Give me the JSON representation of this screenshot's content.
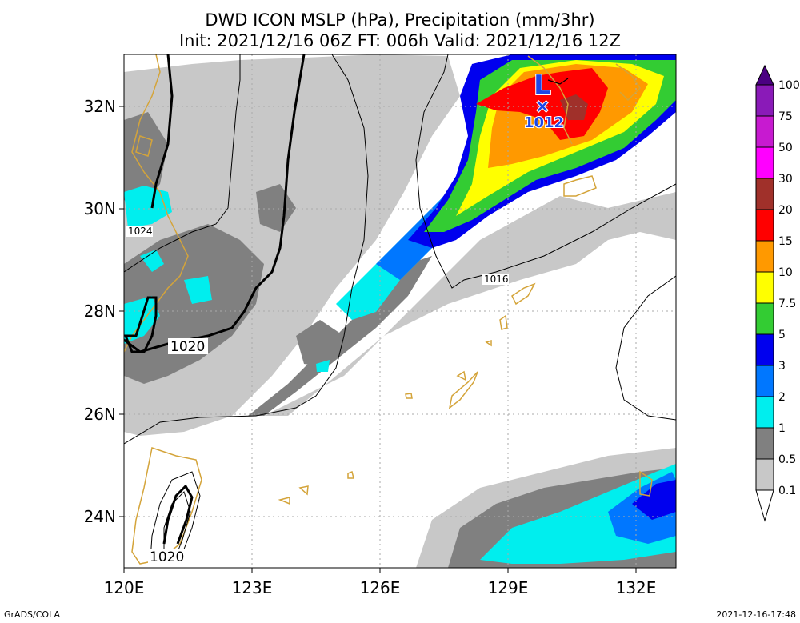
{
  "title": {
    "line1": "DWD ICON MSLP (hPa), Precipitation (mm/3hr)",
    "line2": "Init: 2021/12/16 06Z  FT: 006h  Valid: 2021/12/16 12Z"
  },
  "axes": {
    "lon_labels": [
      "120E",
      "123E",
      "126E",
      "129E",
      "132E"
    ],
    "lat_labels": [
      "32N",
      "30N",
      "28N",
      "26N",
      "24N"
    ]
  },
  "colorbar": {
    "labels": [
      "100",
      "75",
      "50",
      "30",
      "20",
      "15",
      "10",
      "7.5",
      "5",
      "3",
      "2",
      "1",
      "0.5",
      "0.1"
    ],
    "colors": [
      "#4b0082",
      "#8a1ab8",
      "#c71ad0",
      "#ff00ff",
      "#a0302a",
      "#ff0000",
      "#ff9900",
      "#ffff00",
      "#33cc33",
      "#0000ee",
      "#0077ff",
      "#00eeee",
      "#808080",
      "#c8c8c8",
      "#ffffff"
    ]
  },
  "isobar_labels": {
    "l1024": "1024",
    "l1020_west": "1020",
    "l1016": "1016",
    "l1020_south": "1020"
  },
  "low_center": {
    "symbol": "L",
    "marker": "×",
    "pressure": "1012",
    "color": "#1e46e6"
  },
  "footer": {
    "left": "GrADS/COLA",
    "right": "2021-12-16-17:48"
  },
  "colors": {
    "coast": "#d4a43a",
    "grid": "#aaaaaa"
  }
}
